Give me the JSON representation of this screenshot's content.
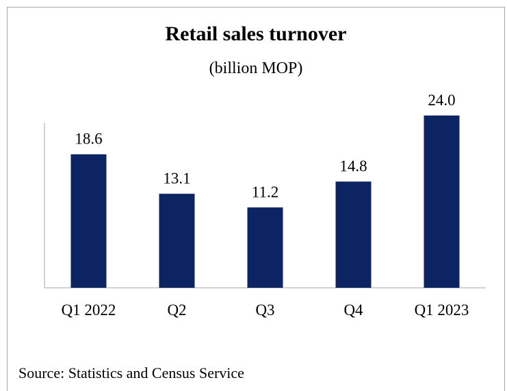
{
  "chart_data": {
    "type": "bar",
    "title": "Retail sales turnover",
    "subtitle": "(billion MOP)",
    "categories": [
      "Q1 2022",
      "Q2",
      "Q3",
      "Q4",
      "Q1 2023"
    ],
    "values": [
      18.6,
      13.1,
      11.2,
      14.8,
      24.0
    ],
    "value_labels": [
      "18.6",
      "13.1",
      "11.2",
      "14.8",
      "24.0"
    ],
    "ylim": [
      0,
      30
    ],
    "grid": false,
    "legend": "none",
    "bar_color": "#0c2461"
  },
  "source": "Source: Statistics and Census Service"
}
